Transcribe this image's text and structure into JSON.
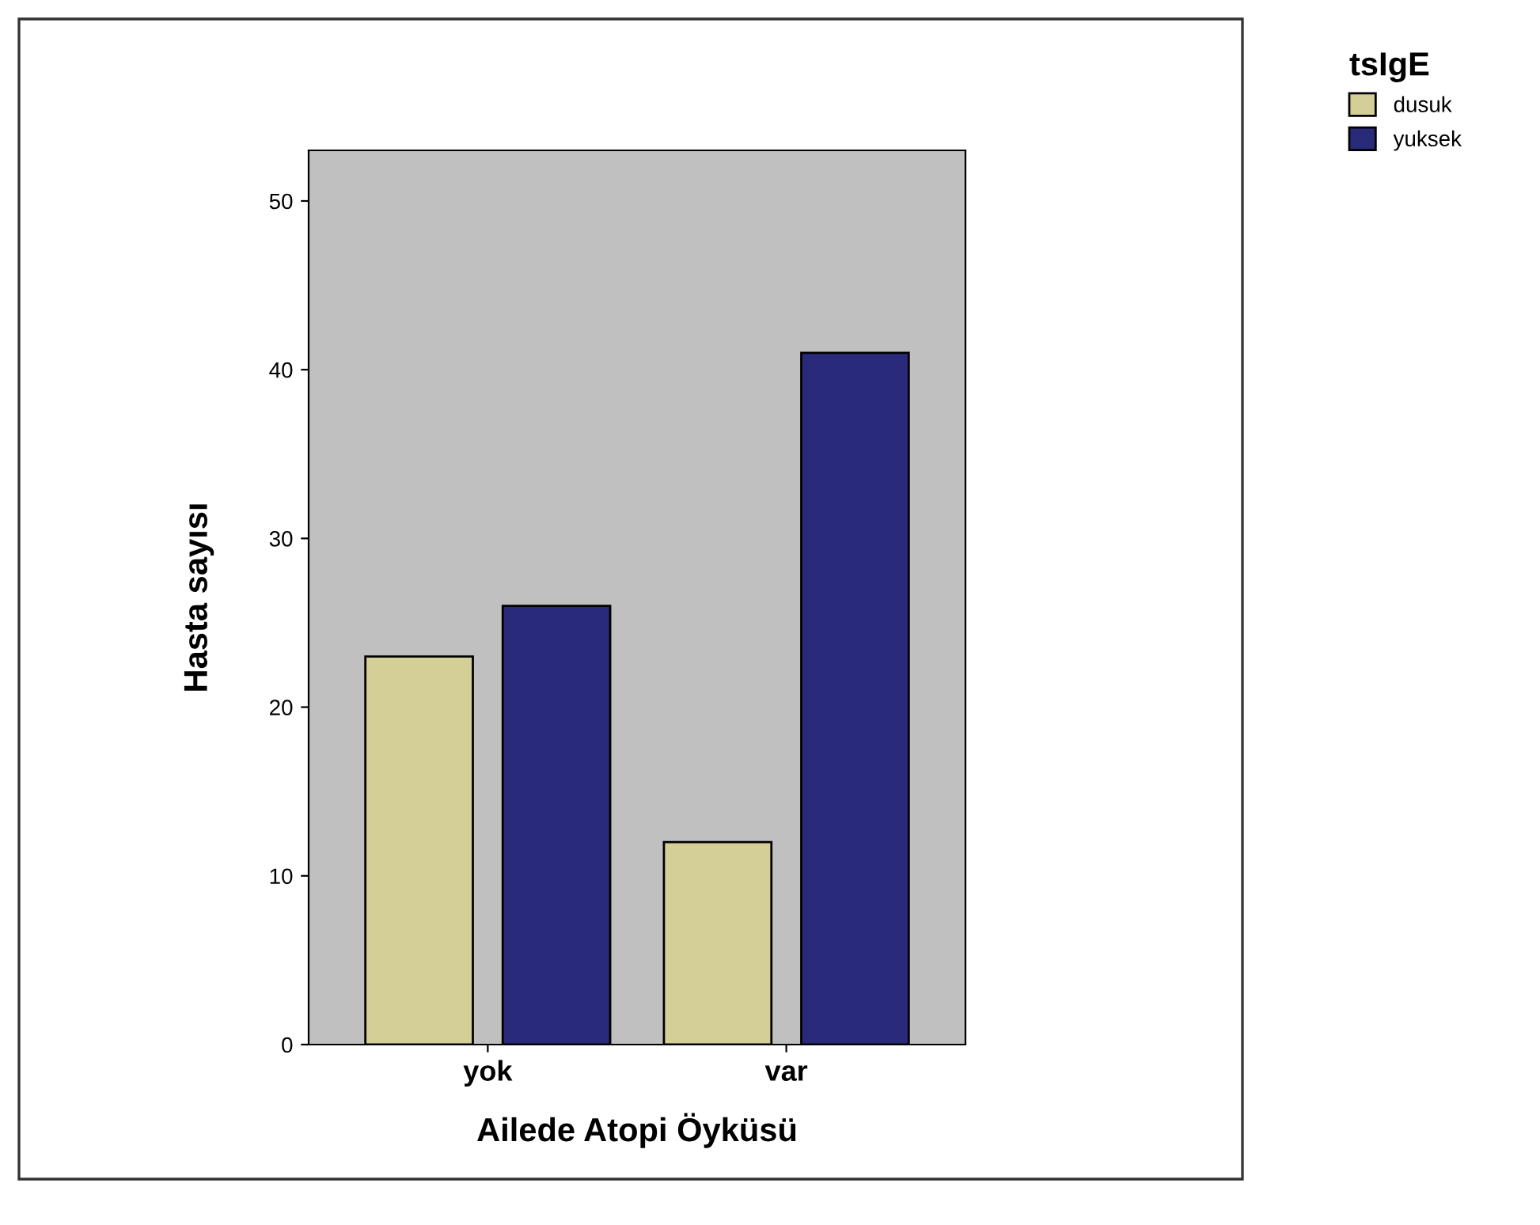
{
  "chart_data": {
    "type": "bar",
    "xlabel": "Ailede Atopi Öyküsü",
    "ylabel": "Hasta sayısı",
    "legend_title": "tsIgE",
    "categories": [
      "yok",
      "var"
    ],
    "series": [
      {
        "name": "dusuk",
        "color": "#d3cf96",
        "values": [
          23,
          12
        ]
      },
      {
        "name": "yuksek",
        "color": "#2a2a7a",
        "values": [
          26,
          41
        ]
      }
    ],
    "ylim": [
      0,
      53
    ],
    "yticks": [
      0,
      10,
      20,
      30,
      40,
      50
    ],
    "grid": false,
    "legend": "top right"
  }
}
